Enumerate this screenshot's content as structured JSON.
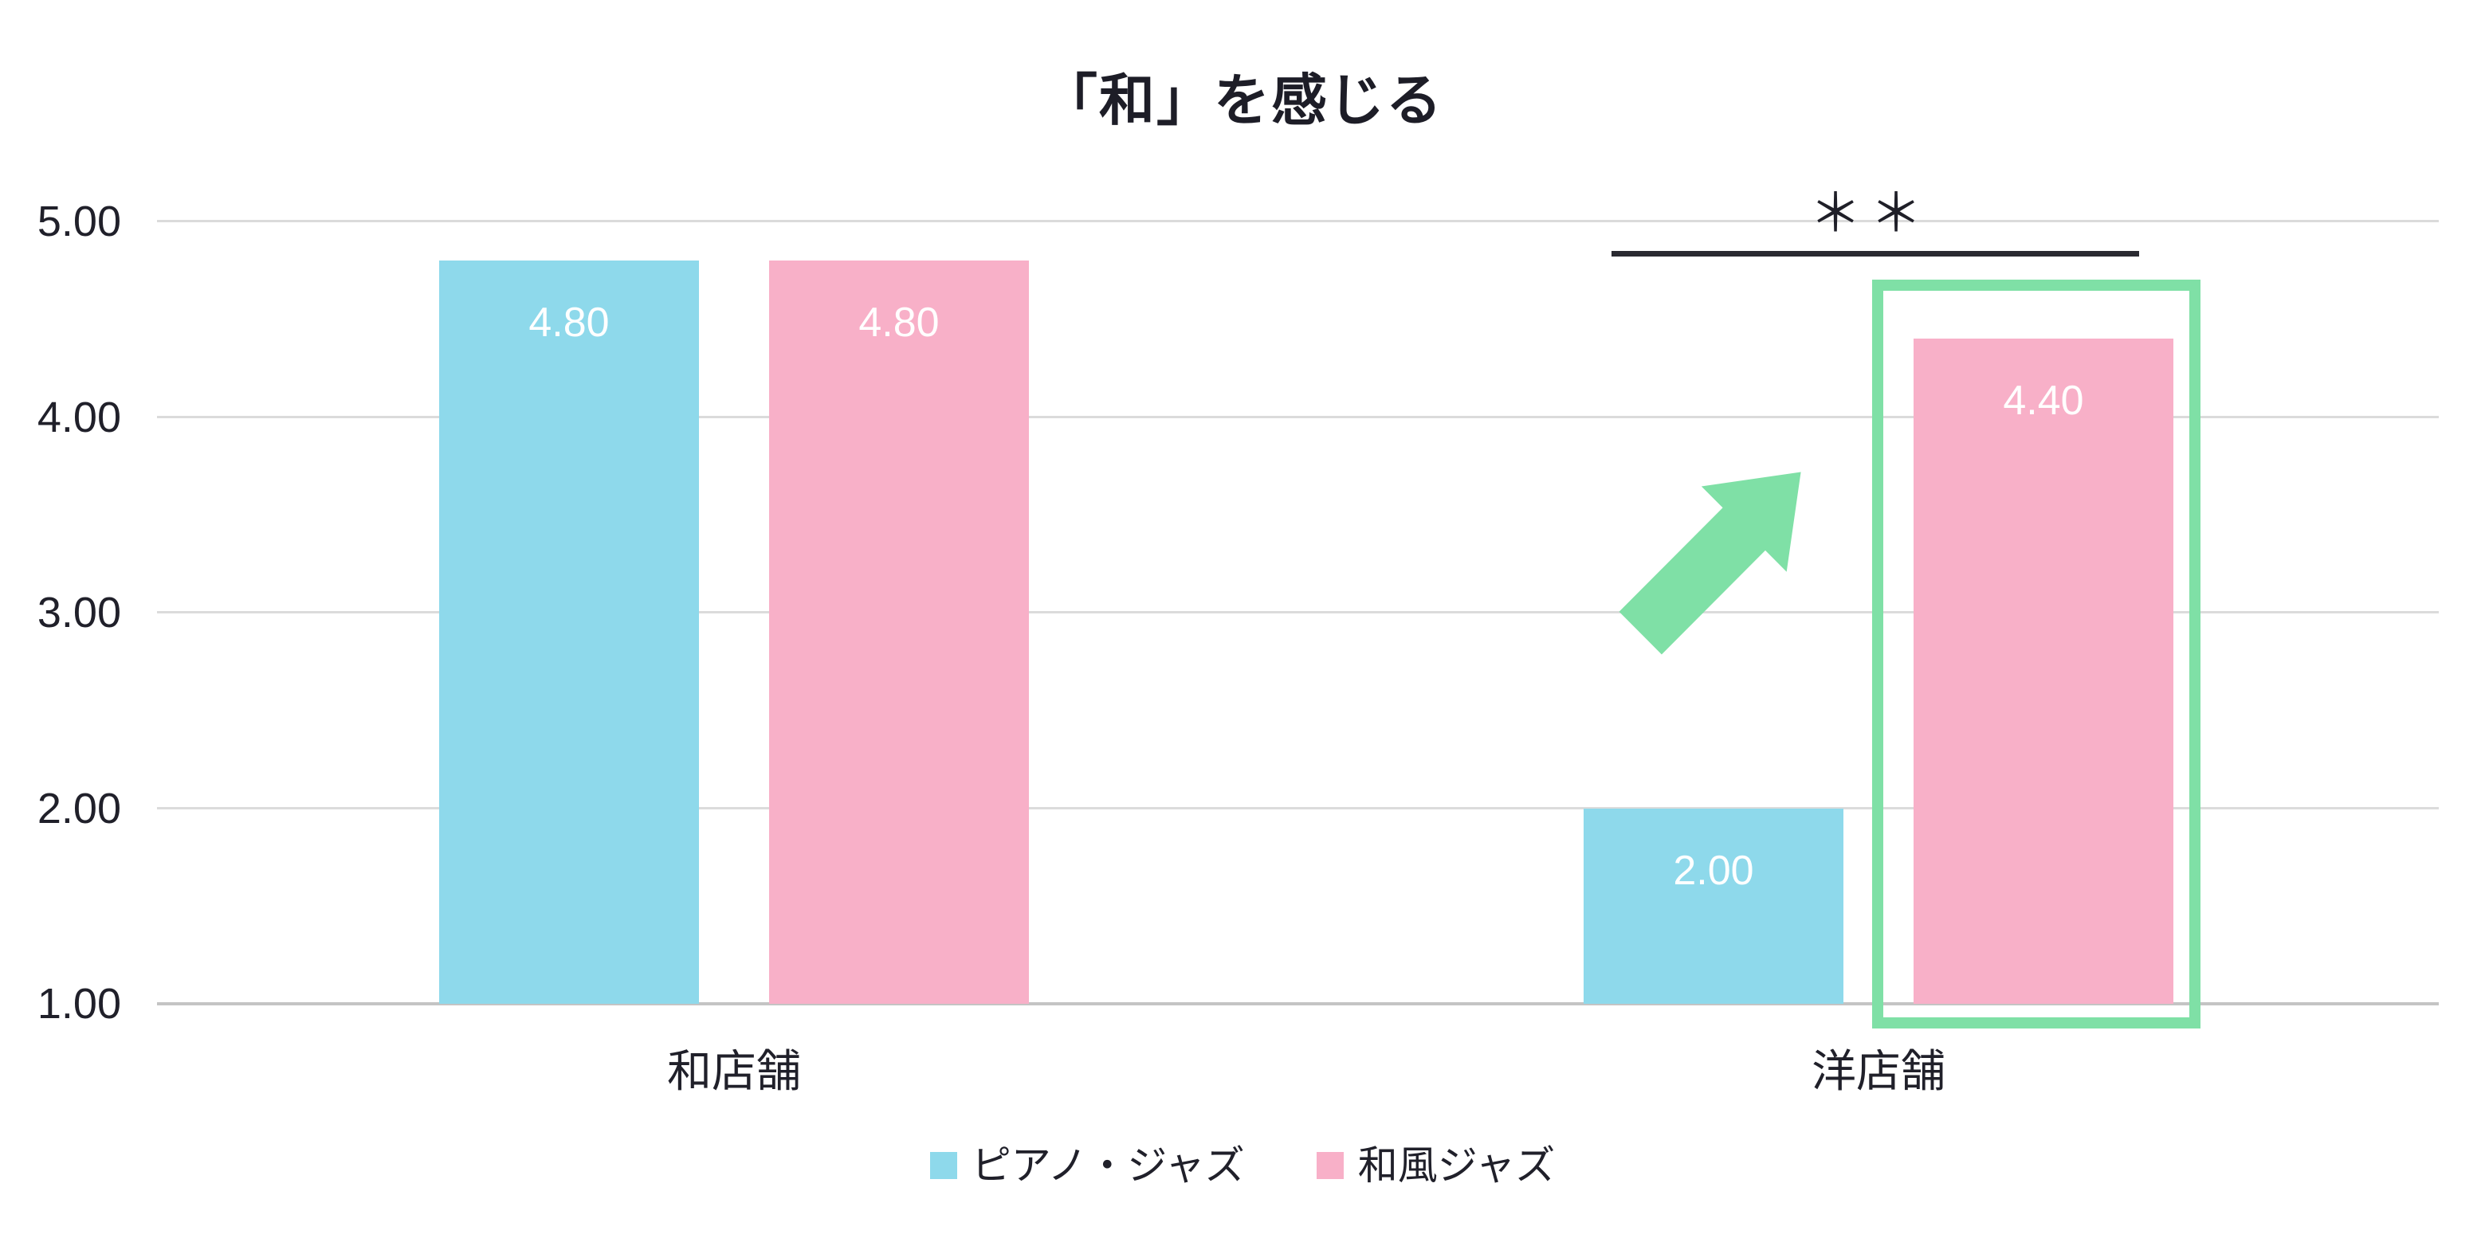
{
  "chart_data": {
    "type": "bar",
    "title": "「和」を感じる",
    "categories": [
      "和店舗",
      "洋店舗"
    ],
    "series": [
      {
        "name": "ピアノ・ジャズ",
        "color": "#8ED9EB",
        "values": [
          4.8,
          2.0
        ],
        "value_labels": [
          "4.80",
          "2.00"
        ]
      },
      {
        "name": "和風ジャズ",
        "color": "#F8B0C8",
        "values": [
          4.8,
          4.4
        ],
        "value_labels": [
          "4.80",
          "4.40"
        ]
      }
    ],
    "ylim": [
      1.0,
      5.0
    ],
    "yticks": [
      {
        "value": 5,
        "label": "5.00"
      },
      {
        "value": 4,
        "label": "4.00"
      },
      {
        "value": 3,
        "label": "3.00"
      },
      {
        "value": 2,
        "label": "2.00"
      },
      {
        "value": 1,
        "label": "1.00"
      }
    ],
    "grid": "horizontal",
    "legend_position": "bottom",
    "value_label_color": "#FFFFFF",
    "annotations": {
      "significance_marker": {
        "text": "＊＊",
        "over_category": "洋店舗"
      },
      "significance_line": {
        "over_category": "洋店舗",
        "color": "#2A2A31"
      },
      "highlight_box": {
        "around": "洋店舗 和風ジャズ bar",
        "color": "#7FE0A6"
      },
      "arrow": {
        "shape": "block-arrow-up-right",
        "color": "#7FE0A6"
      }
    }
  },
  "colors": {
    "background": "#FFFFFF",
    "text": "#20202A",
    "title_text": "#1D1D27",
    "gridline": "#DBDBDB",
    "axis_line": "#C4C4C4"
  }
}
